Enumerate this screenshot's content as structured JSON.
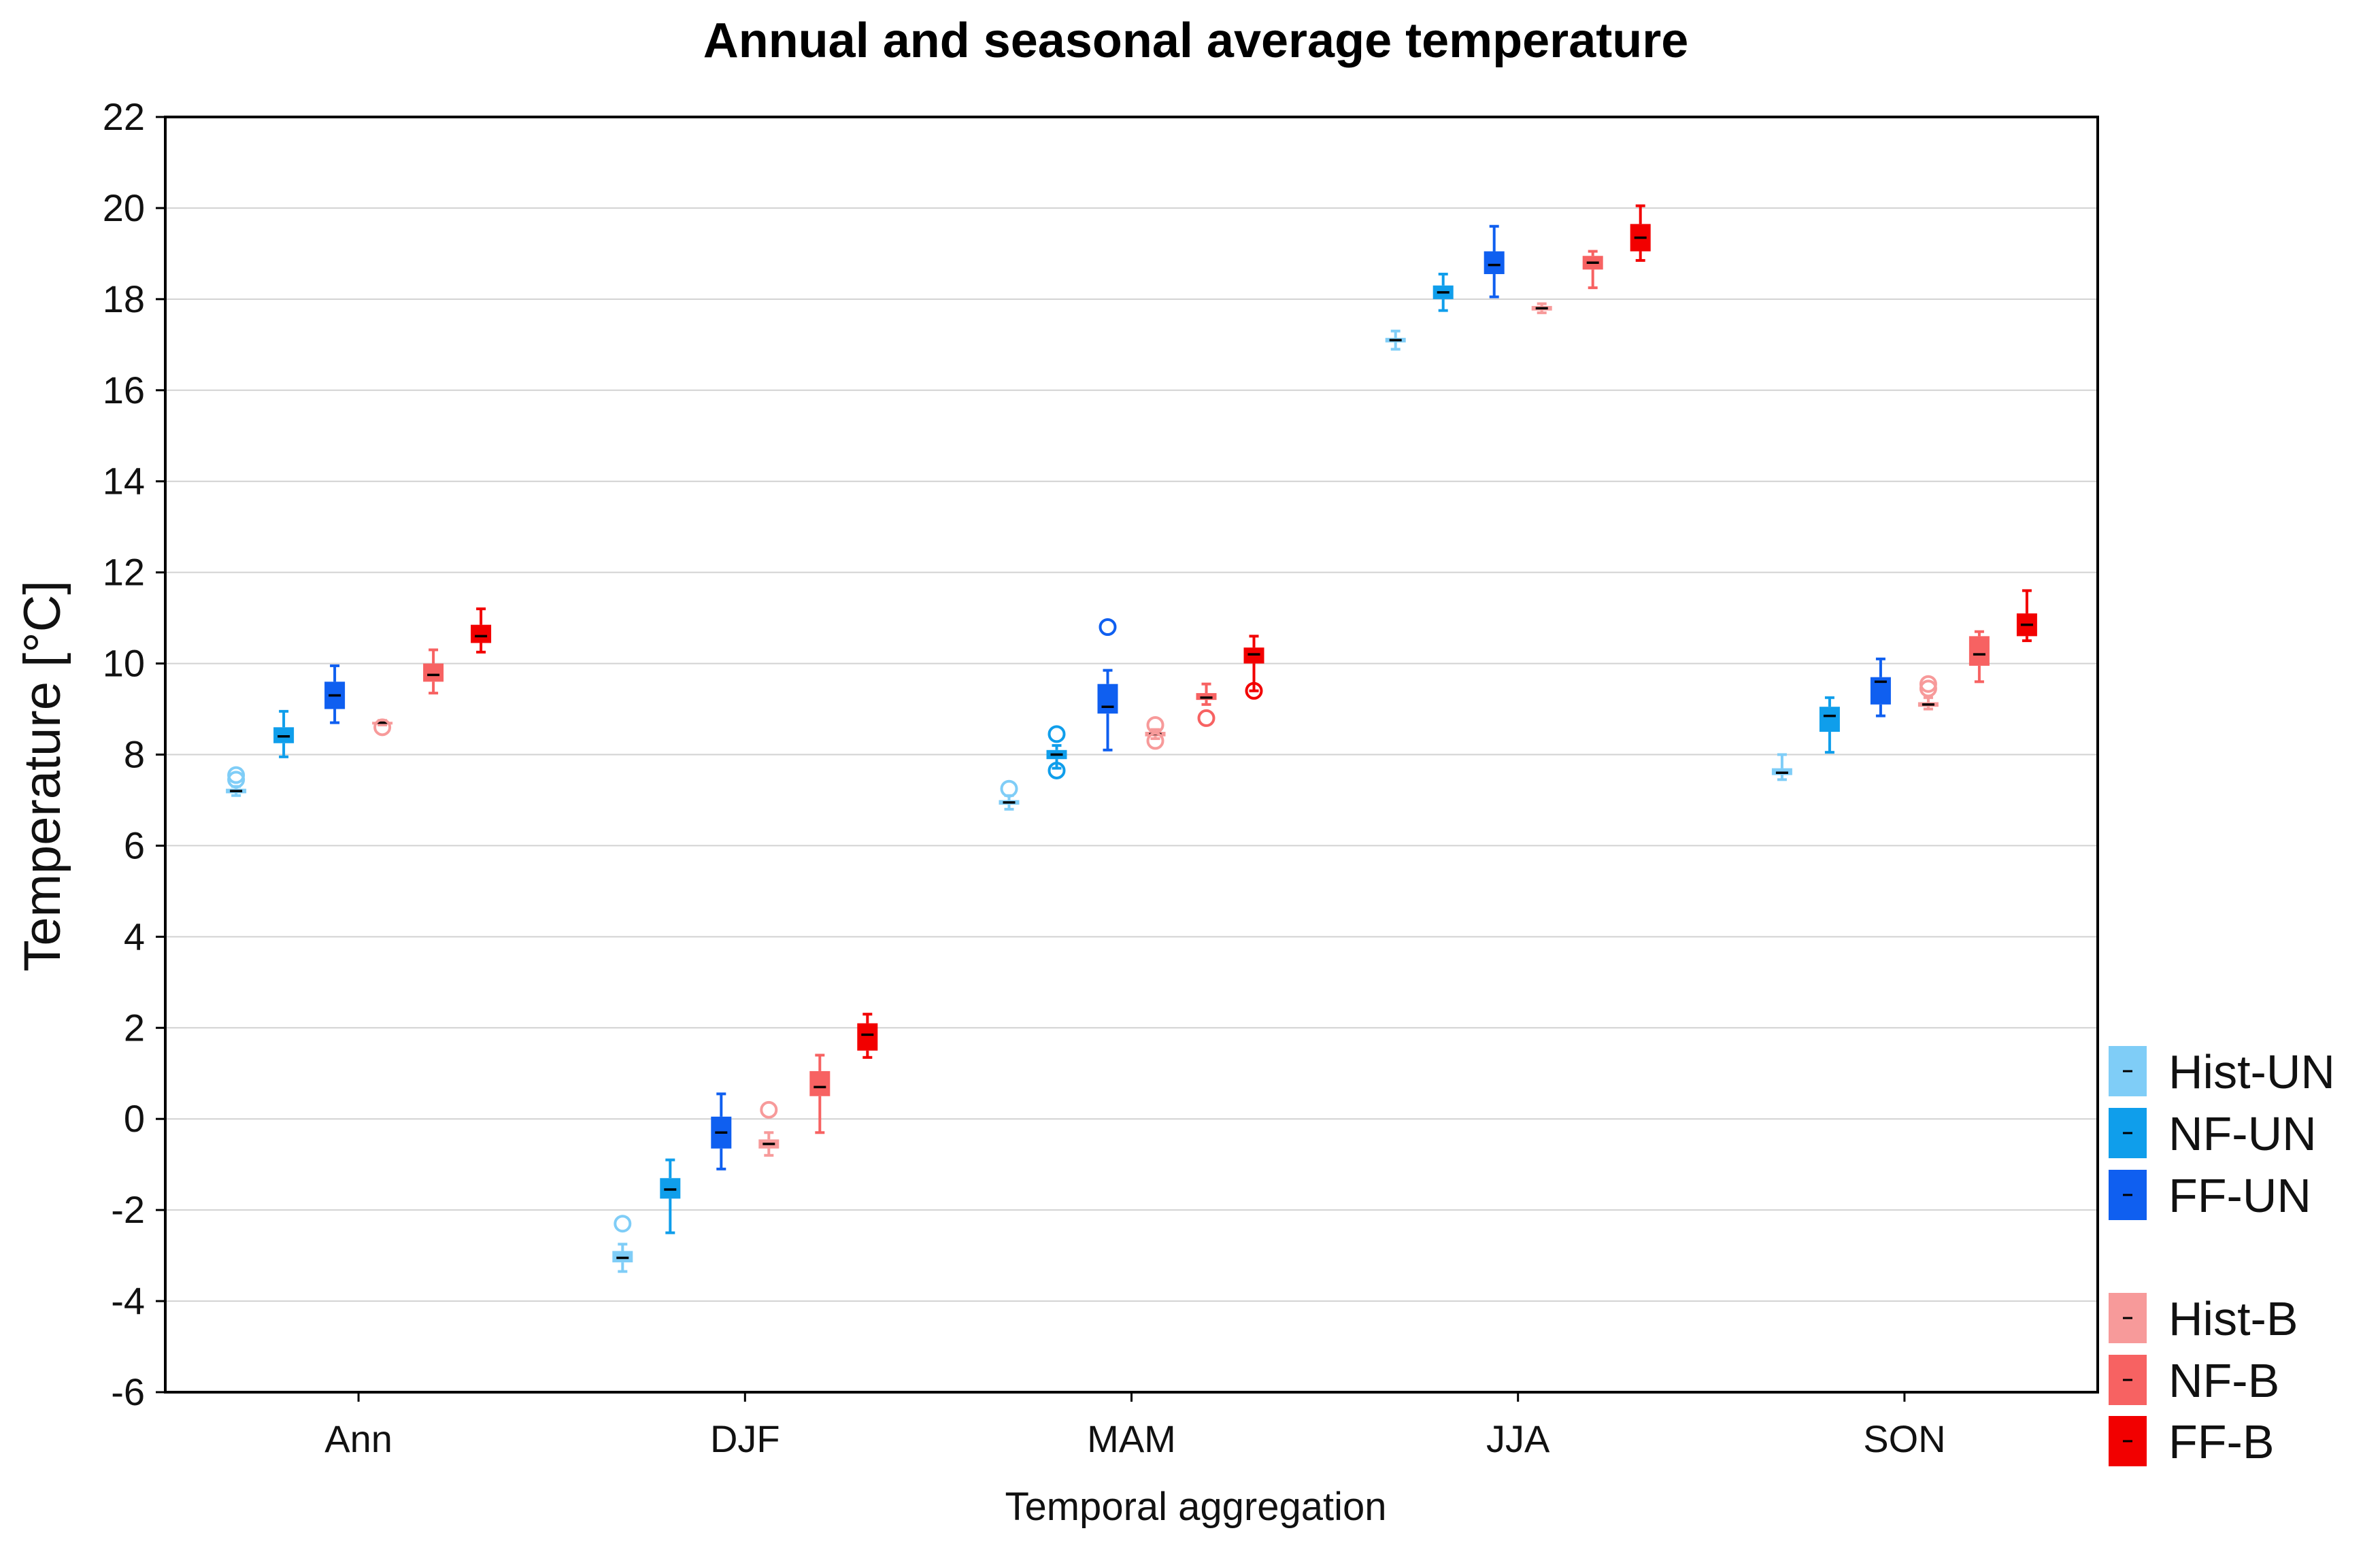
{
  "chart_data": {
    "type": "boxplot",
    "title": "Annual and seasonal average temperature",
    "xlabel": "Temporal aggregation",
    "ylabel": "Temperature [°C]",
    "ylim": [
      -6,
      22
    ],
    "yticks": [
      22,
      20,
      18,
      16,
      14,
      12,
      10,
      8,
      6,
      4,
      2,
      0,
      -2,
      -4,
      -6
    ],
    "categories": [
      "Ann",
      "DJF",
      "MAM",
      "JJA",
      "SON"
    ],
    "grid": true,
    "legend_position": "right",
    "series": [
      {
        "name": "Hist-UN",
        "color": "#7fcdf7",
        "boxes": [
          {
            "min": 7.1,
            "q1": 7.15,
            "median": 7.2,
            "q3": 7.25,
            "max": 7.3,
            "outliers": [
              7.45,
              7.55
            ]
          },
          {
            "min": -3.35,
            "q1": -3.15,
            "median": -3.05,
            "q3": -2.9,
            "max": -2.75,
            "outliers": [
              -2.3
            ]
          },
          {
            "min": 6.8,
            "q1": 6.9,
            "median": 6.95,
            "q3": 7.0,
            "max": 7.1,
            "outliers": [
              7.25
            ]
          },
          {
            "min": 16.9,
            "q1": 17.05,
            "median": 17.1,
            "q3": 17.15,
            "max": 17.3,
            "outliers": []
          },
          {
            "min": 7.45,
            "q1": 7.55,
            "median": 7.6,
            "q3": 7.7,
            "max": 8.0,
            "outliers": []
          }
        ]
      },
      {
        "name": "NF-UN",
        "color": "#0f9eeb",
        "boxes": [
          {
            "min": 7.95,
            "q1": 8.25,
            "median": 8.4,
            "q3": 8.6,
            "max": 8.95,
            "outliers": []
          },
          {
            "min": -2.5,
            "q1": -1.75,
            "median": -1.55,
            "q3": -1.3,
            "max": -0.9,
            "outliers": []
          },
          {
            "min": 7.7,
            "q1": 7.9,
            "median": 8.0,
            "q3": 8.1,
            "max": 8.2,
            "outliers": [
              7.65,
              8.45
            ]
          },
          {
            "min": 17.75,
            "q1": 18.0,
            "median": 18.15,
            "q3": 18.3,
            "max": 18.55,
            "outliers": []
          },
          {
            "min": 8.05,
            "q1": 8.5,
            "median": 8.85,
            "q3": 9.05,
            "max": 9.25,
            "outliers": []
          }
        ]
      },
      {
        "name": "FF-UN",
        "color": "#0f5ff0",
        "boxes": [
          {
            "min": 8.7,
            "q1": 9.0,
            "median": 9.3,
            "q3": 9.6,
            "max": 9.95,
            "outliers": []
          },
          {
            "min": -1.1,
            "q1": -0.65,
            "median": -0.3,
            "q3": 0.05,
            "max": 0.55,
            "outliers": []
          },
          {
            "min": 8.1,
            "q1": 8.9,
            "median": 9.05,
            "q3": 9.55,
            "max": 9.85,
            "outliers": [
              10.8
            ]
          },
          {
            "min": 18.05,
            "q1": 18.55,
            "median": 18.75,
            "q3": 19.05,
            "max": 19.6,
            "outliers": []
          },
          {
            "min": 8.85,
            "q1": 9.1,
            "median": 9.6,
            "q3": 9.7,
            "max": 10.1,
            "outliers": []
          }
        ]
      },
      {
        "name": "Hist-B",
        "color": "#f79a9a",
        "boxes": [
          {
            "min": 8.65,
            "q1": 8.68,
            "median": 8.7,
            "q3": 8.72,
            "max": 8.75,
            "outliers": [
              8.6
            ]
          },
          {
            "min": -0.8,
            "q1": -0.65,
            "median": -0.55,
            "q3": -0.45,
            "max": -0.3,
            "outliers": [
              0.2
            ]
          },
          {
            "min": 8.35,
            "q1": 8.4,
            "median": 8.45,
            "q3": 8.5,
            "max": 8.55,
            "outliers": [
              8.3,
              8.65
            ]
          },
          {
            "min": 17.7,
            "q1": 17.75,
            "median": 17.8,
            "q3": 17.85,
            "max": 17.9,
            "outliers": []
          },
          {
            "min": 9.0,
            "q1": 9.05,
            "median": 9.1,
            "q3": 9.15,
            "max": 9.25,
            "outliers": [
              9.45,
              9.55
            ]
          }
        ]
      },
      {
        "name": "NF-B",
        "color": "#f76262",
        "boxes": [
          {
            "min": 9.35,
            "q1": 9.6,
            "median": 9.75,
            "q3": 10.0,
            "max": 10.3,
            "outliers": []
          },
          {
            "min": -0.3,
            "q1": 0.5,
            "median": 0.7,
            "q3": 1.05,
            "max": 1.4,
            "outliers": []
          },
          {
            "min": 9.1,
            "q1": 9.2,
            "median": 9.25,
            "q3": 9.35,
            "max": 9.55,
            "outliers": [
              8.8
            ]
          },
          {
            "min": 18.25,
            "q1": 18.65,
            "median": 18.8,
            "q3": 18.95,
            "max": 19.05,
            "outliers": []
          },
          {
            "min": 9.6,
            "q1": 9.95,
            "median": 10.2,
            "q3": 10.6,
            "max": 10.7,
            "outliers": []
          }
        ]
      },
      {
        "name": "FF-B",
        "color": "#f20000",
        "boxes": [
          {
            "min": 10.25,
            "q1": 10.45,
            "median": 10.6,
            "q3": 10.85,
            "max": 11.2,
            "outliers": []
          },
          {
            "min": 1.35,
            "q1": 1.5,
            "median": 1.85,
            "q3": 2.1,
            "max": 2.3,
            "outliers": []
          },
          {
            "min": 9.4,
            "q1": 10.0,
            "median": 10.2,
            "q3": 10.35,
            "max": 10.6,
            "outliers": [
              9.4
            ]
          },
          {
            "min": 18.85,
            "q1": 19.05,
            "median": 19.35,
            "q3": 19.65,
            "max": 20.05,
            "outliers": []
          },
          {
            "min": 10.5,
            "q1": 10.6,
            "median": 10.85,
            "q3": 11.1,
            "max": 11.6,
            "outliers": []
          }
        ]
      }
    ]
  }
}
